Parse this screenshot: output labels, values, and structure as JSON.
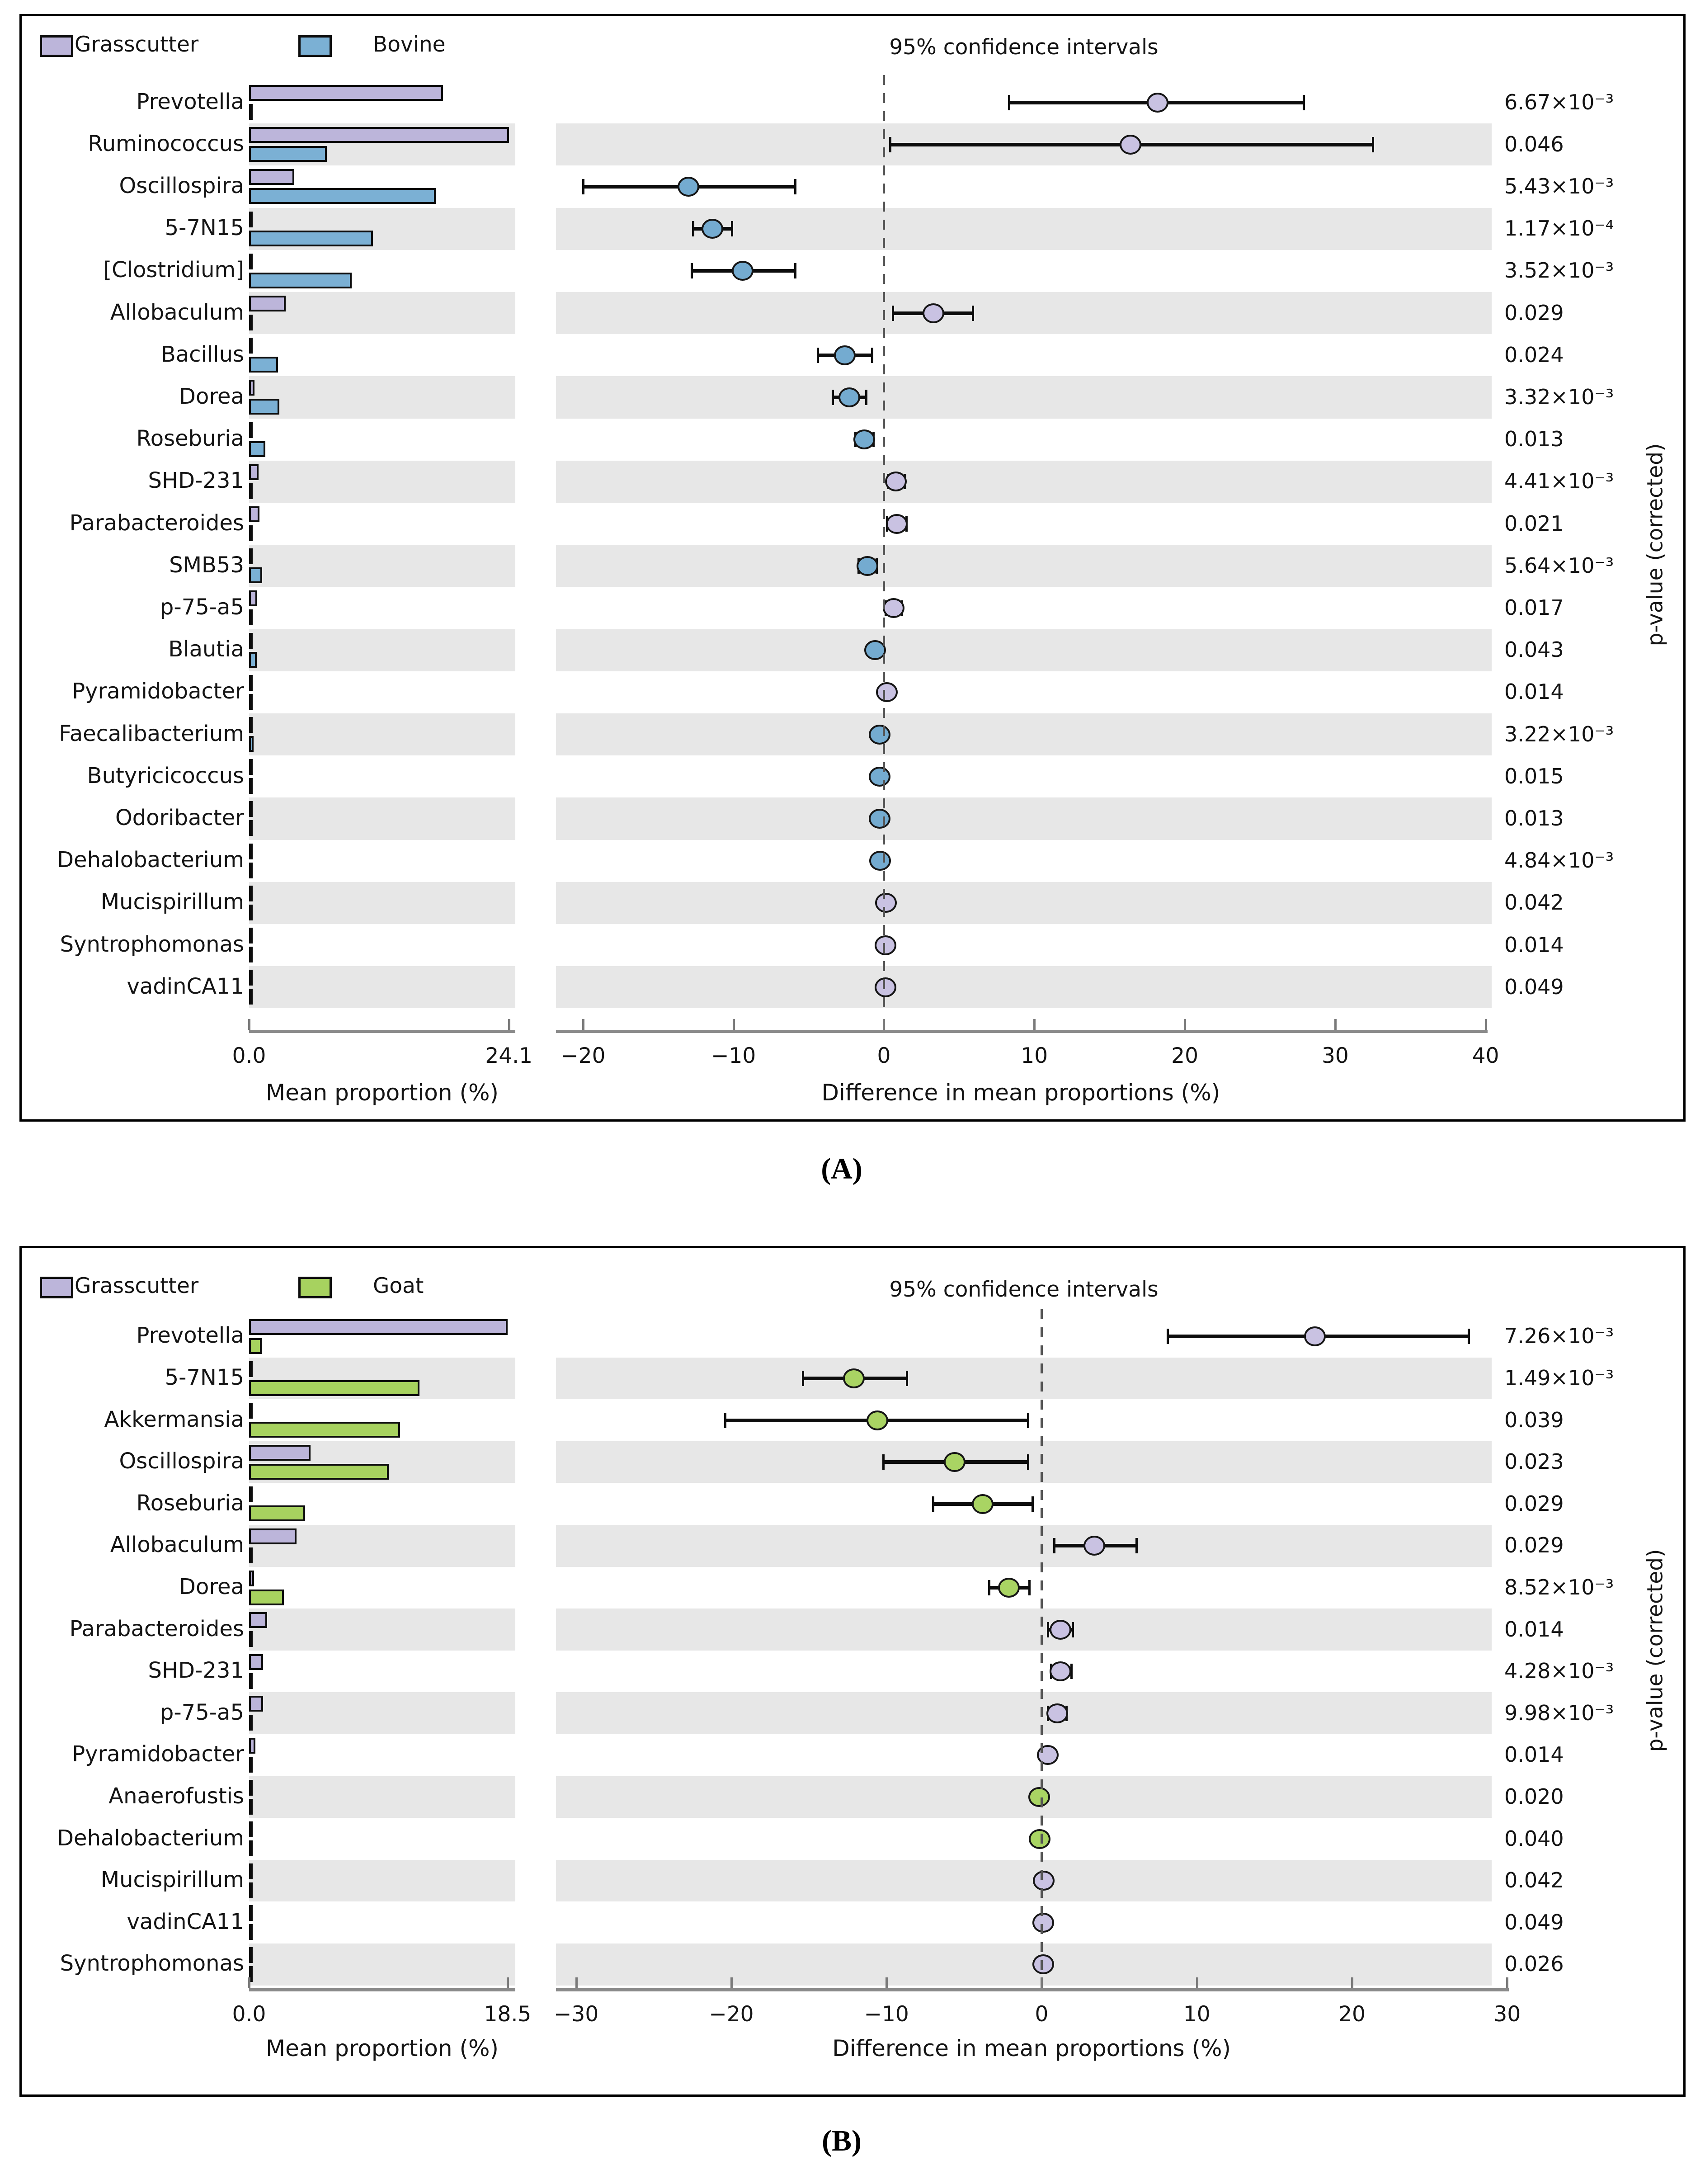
{
  "chart_data": [
    {
      "type": "bar",
      "variant": "extended-error-bar",
      "panel": "A",
      "caption": "(A)",
      "title": "95% confidence intervals",
      "right_ylabel": "p-value (corrected)",
      "groups": [
        {
          "name": "Grasscutter",
          "bar_color": "#bcb5da",
          "marker_color": "#c9c2e2"
        },
        {
          "name": "Bovine",
          "bar_color": "#7bb0d4",
          "marker_color": "#74abd0"
        }
      ],
      "left_axis": {
        "xlabel": "Mean proportion (%)",
        "tick_values": [
          0,
          24.1
        ],
        "tick_labels": [
          "0.0",
          "24.1"
        ],
        "xmax": 24.7
      },
      "right_axis": {
        "xlabel": "Difference in mean proportions (%)",
        "tick_values": [
          -20,
          -10,
          0,
          10,
          20,
          30,
          40
        ],
        "tick_labels": [
          "−20",
          "−10",
          "0",
          "10",
          "20",
          "30",
          "40"
        ],
        "xmin": -21.8,
        "xmax": 40.4
      },
      "rows": [
        {
          "taxon": "Prevotella",
          "mean_grasscutter": 18.0,
          "mean_other": 0.2,
          "diff": 18.2,
          "ci": [
            8.3,
            27.9
          ],
          "higher_in": "Grasscutter",
          "p": "6.67×10⁻³"
        },
        {
          "taxon": "Ruminococcus",
          "mean_grasscutter": 24.1,
          "mean_other": 7.2,
          "diff": 16.4,
          "ci": [
            0.4,
            32.5
          ],
          "higher_in": "Grasscutter",
          "p": "0.046"
        },
        {
          "taxon": "Oscillospira",
          "mean_grasscutter": 4.2,
          "mean_other": 17.3,
          "diff": -13.0,
          "ci": [
            -20.0,
            -5.9
          ],
          "higher_in": "Bovine",
          "p": "5.43×10⁻³"
        },
        {
          "taxon": "5-7N15",
          "mean_grasscutter": 0.1,
          "mean_other": 11.5,
          "diff": -11.4,
          "ci": [
            -12.7,
            -10.1
          ],
          "higher_in": "Bovine",
          "p": "1.17×10⁻⁴"
        },
        {
          "taxon": "[Clostridium]",
          "mean_grasscutter": 0.1,
          "mean_other": 9.5,
          "diff": -9.4,
          "ci": [
            -12.8,
            -5.9
          ],
          "higher_in": "Bovine",
          "p": "3.52×10⁻³"
        },
        {
          "taxon": "Allobaculum",
          "mean_grasscutter": 3.4,
          "mean_other": 0.05,
          "diff": 3.3,
          "ci": [
            0.6,
            5.9
          ],
          "higher_in": "Grasscutter",
          "p": "0.029"
        },
        {
          "taxon": "Bacillus",
          "mean_grasscutter": 0.05,
          "mean_other": 2.7,
          "diff": -2.6,
          "ci": [
            -4.4,
            -0.8
          ],
          "higher_in": "Bovine",
          "p": "0.024"
        },
        {
          "taxon": "Dorea",
          "mean_grasscutter": 0.5,
          "mean_other": 2.8,
          "diff": -2.3,
          "ci": [
            -3.4,
            -1.2
          ],
          "higher_in": "Bovine",
          "p": "3.32×10⁻³"
        },
        {
          "taxon": "Roseburia",
          "mean_grasscutter": 0.15,
          "mean_other": 1.5,
          "diff": -1.3,
          "ci": [
            -1.9,
            -0.7
          ],
          "higher_in": "Bovine",
          "p": "0.013"
        },
        {
          "taxon": "SHD-231",
          "mean_grasscutter": 0.9,
          "mean_other": 0.1,
          "diff": 0.8,
          "ci": [
            0.3,
            1.4
          ],
          "higher_in": "Grasscutter",
          "p": "4.41×10⁻³"
        },
        {
          "taxon": "Parabacteroides",
          "mean_grasscutter": 0.95,
          "mean_other": 0.1,
          "diff": 0.85,
          "ci": [
            0.2,
            1.5
          ],
          "higher_in": "Grasscutter",
          "p": "0.021"
        },
        {
          "taxon": "SMB53",
          "mean_grasscutter": 0.1,
          "mean_other": 1.2,
          "diff": -1.1,
          "ci": [
            -1.7,
            -0.5
          ],
          "higher_in": "Bovine",
          "p": "5.64×10⁻³"
        },
        {
          "taxon": "p-75-a5",
          "mean_grasscutter": 0.75,
          "mean_other": 0.1,
          "diff": 0.65,
          "ci": [
            0.1,
            1.2
          ],
          "higher_in": "Grasscutter",
          "p": "0.017"
        },
        {
          "taxon": "Blautia",
          "mean_grasscutter": 0.1,
          "mean_other": 0.7,
          "diff": -0.6,
          "ci": [
            -1.0,
            -0.2
          ],
          "higher_in": "Bovine",
          "p": "0.043"
        },
        {
          "taxon": "Pyramidobacter",
          "mean_grasscutter": 0.25,
          "mean_other": 0.05,
          "diff": 0.2,
          "ci": [
            0.05,
            0.35
          ],
          "higher_in": "Grasscutter",
          "p": "0.014"
        },
        {
          "taxon": "Faecalibacterium",
          "mean_grasscutter": 0.05,
          "mean_other": 0.4,
          "diff": -0.3,
          "ci": [
            -0.5,
            -0.1
          ],
          "higher_in": "Bovine",
          "p": "3.22×10⁻³"
        },
        {
          "taxon": "Butyricicoccus",
          "mean_grasscutter": 0.05,
          "mean_other": 0.35,
          "diff": -0.3,
          "ci": [
            -0.5,
            -0.1
          ],
          "higher_in": "Bovine",
          "p": "0.015"
        },
        {
          "taxon": "Odoribacter",
          "mean_grasscutter": 0.04,
          "mean_other": 0.33,
          "diff": -0.3,
          "ci": [
            -0.45,
            -0.12
          ],
          "higher_in": "Bovine",
          "p": "0.013"
        },
        {
          "taxon": "Dehalobacterium",
          "mean_grasscutter": 0.04,
          "mean_other": 0.3,
          "diff": -0.27,
          "ci": [
            -0.42,
            -0.12
          ],
          "higher_in": "Bovine",
          "p": "4.84×10⁻³"
        },
        {
          "taxon": "Mucispirillum",
          "mean_grasscutter": 0.2,
          "mean_other": 0.04,
          "diff": 0.15,
          "ci": [
            0.05,
            0.26
          ],
          "higher_in": "Grasscutter",
          "p": "0.042"
        },
        {
          "taxon": "Syntrophomonas",
          "mean_grasscutter": 0.15,
          "mean_other": 0.03,
          "diff": 0.12,
          "ci": [
            0.04,
            0.2
          ],
          "higher_in": "Grasscutter",
          "p": "0.014"
        },
        {
          "taxon": "vadinCA11",
          "mean_grasscutter": 0.14,
          "mean_other": 0.03,
          "diff": 0.11,
          "ci": [
            0.03,
            0.2
          ],
          "higher_in": "Grasscutter",
          "p": "0.049"
        }
      ]
    },
    {
      "type": "bar",
      "variant": "extended-error-bar",
      "panel": "B",
      "caption": "(B)",
      "title": "95% confidence intervals",
      "right_ylabel": "p-value (corrected)",
      "groups": [
        {
          "name": "Grasscutter",
          "bar_color": "#bcb5da",
          "marker_color": "#c9c2e2"
        },
        {
          "name": "Goat",
          "bar_color": "#a7d25f",
          "marker_color": "#a9d463"
        }
      ],
      "left_axis": {
        "xlabel": "Mean proportion (%)",
        "tick_values": [
          0,
          18.5
        ],
        "tick_labels": [
          "0.0",
          "18.5"
        ],
        "xmax": 19.05
      },
      "right_axis": {
        "xlabel": "Difference in mean proportions (%)",
        "tick_values": [
          -30,
          -20,
          -10,
          0,
          10,
          20,
          30
        ],
        "tick_labels": [
          "−30",
          "−20",
          "−10",
          "0",
          "10",
          "20",
          "30"
        ],
        "xmin": -31.3,
        "xmax": 29.0
      },
      "rows": [
        {
          "taxon": "Prevotella",
          "mean_grasscutter": 18.5,
          "mean_other": 0.9,
          "diff": 17.6,
          "ci": [
            8.1,
            27.5
          ],
          "higher_in": "Grasscutter",
          "p": "7.26×10⁻³"
        },
        {
          "taxon": "5-7N15",
          "mean_grasscutter": 0.1,
          "mean_other": 12.2,
          "diff": -12.1,
          "ci": [
            -15.4,
            -8.7
          ],
          "higher_in": "Goat",
          "p": "1.49×10⁻³"
        },
        {
          "taxon": "Akkermansia",
          "mean_grasscutter": 0.1,
          "mean_other": 10.8,
          "diff": -10.6,
          "ci": [
            -20.4,
            -0.9
          ],
          "higher_in": "Goat",
          "p": "0.039"
        },
        {
          "taxon": "Oscillospira",
          "mean_grasscutter": 4.4,
          "mean_other": 10.0,
          "diff": -5.6,
          "ci": [
            -10.2,
            -0.9
          ],
          "higher_in": "Goat",
          "p": "0.023"
        },
        {
          "taxon": "Roseburia",
          "mean_grasscutter": 0.2,
          "mean_other": 4.0,
          "diff": -3.8,
          "ci": [
            -7.0,
            -0.6
          ],
          "higher_in": "Goat",
          "p": "0.029"
        },
        {
          "taxon": "Allobaculum",
          "mean_grasscutter": 3.4,
          "mean_other": 0.05,
          "diff": 3.4,
          "ci": [
            0.8,
            6.1
          ],
          "higher_in": "Grasscutter",
          "p": "0.029"
        },
        {
          "taxon": "Dorea",
          "mean_grasscutter": 0.35,
          "mean_other": 2.5,
          "diff": -2.1,
          "ci": [
            -3.4,
            -0.8
          ],
          "higher_in": "Goat",
          "p": "8.52×10⁻³"
        },
        {
          "taxon": "Parabacteroides",
          "mean_grasscutter": 1.3,
          "mean_other": 0.1,
          "diff": 1.2,
          "ci": [
            0.4,
            2.0
          ],
          "higher_in": "Grasscutter",
          "p": "0.014"
        },
        {
          "taxon": "SHD-231",
          "mean_grasscutter": 1.0,
          "mean_other": 0.1,
          "diff": 1.2,
          "ci": [
            0.6,
            1.9
          ],
          "higher_in": "Grasscutter",
          "p": "4.28×10⁻³"
        },
        {
          "taxon": "p-75-a5",
          "mean_grasscutter": 1.0,
          "mean_other": 0.1,
          "diff": 1.0,
          "ci": [
            0.4,
            1.6
          ],
          "higher_in": "Grasscutter",
          "p": "9.98×10⁻³"
        },
        {
          "taxon": "Pyramidobacter",
          "mean_grasscutter": 0.45,
          "mean_other": 0.05,
          "diff": 0.4,
          "ci": [
            0.1,
            0.7
          ],
          "higher_in": "Grasscutter",
          "p": "0.014"
        },
        {
          "taxon": "Anaerofustis",
          "mean_grasscutter": 0.1,
          "mean_other": 0.25,
          "diff": -0.15,
          "ci": [
            -0.28,
            -0.04
          ],
          "higher_in": "Goat",
          "p": "0.020"
        },
        {
          "taxon": "Dehalobacterium",
          "mean_grasscutter": 0.1,
          "mean_other": 0.22,
          "diff": -0.12,
          "ci": [
            -0.24,
            -0.03
          ],
          "higher_in": "Goat",
          "p": "0.040"
        },
        {
          "taxon": "Mucispirillum",
          "mean_grasscutter": 0.2,
          "mean_other": 0.05,
          "diff": 0.12,
          "ci": [
            0.03,
            0.24
          ],
          "higher_in": "Grasscutter",
          "p": "0.042"
        },
        {
          "taxon": "vadinCA11",
          "mean_grasscutter": 0.12,
          "mean_other": 0.03,
          "diff": 0.1,
          "ci": [
            0.02,
            0.2
          ],
          "higher_in": "Grasscutter",
          "p": "0.049"
        },
        {
          "taxon": "Syntrophomonas",
          "mean_grasscutter": 0.1,
          "mean_other": 0.02,
          "diff": 0.1,
          "ci": [
            0.02,
            0.18
          ],
          "higher_in": "Grasscutter",
          "p": "0.026"
        }
      ]
    }
  ]
}
